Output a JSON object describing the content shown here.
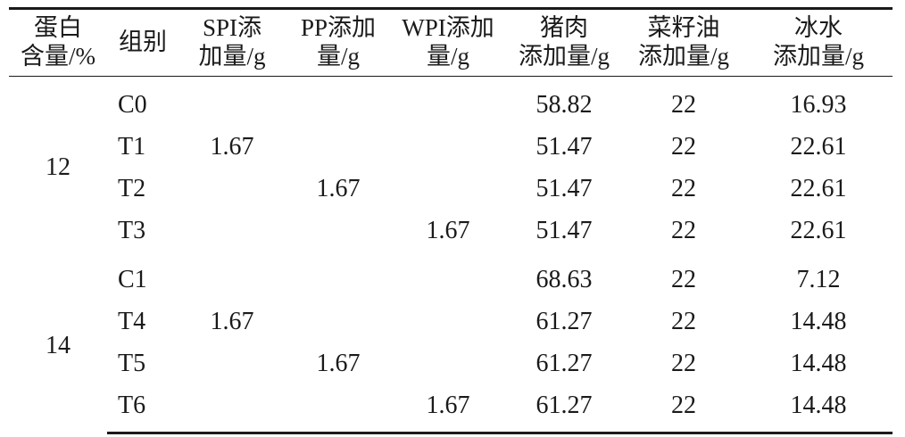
{
  "headers": [
    {
      "line1": "蛋白",
      "line2": "含量/%"
    },
    {
      "line1": "组别",
      "line2": ""
    },
    {
      "line1": "SPI添",
      "line2": "加量/g"
    },
    {
      "line1": "PP添加",
      "line2": "量/g"
    },
    {
      "line1": "WPI添加",
      "line2": "量/g"
    },
    {
      "line1": "猪肉",
      "line2": "添加量/g"
    },
    {
      "line1": "菜籽油",
      "line2": "添加量/g"
    },
    {
      "line1": "冰水",
      "line2": "添加量/g"
    }
  ],
  "groups": [
    {
      "protein": "12",
      "rows": [
        {
          "group": "C0",
          "spi": "",
          "pp": "",
          "wpi": "",
          "pork": "58.82",
          "oil": "22",
          "water": "16.93"
        },
        {
          "group": "T1",
          "spi": "1.67",
          "pp": "",
          "wpi": "",
          "pork": "51.47",
          "oil": "22",
          "water": "22.61"
        },
        {
          "group": "T2",
          "spi": "",
          "pp": "1.67",
          "wpi": "",
          "pork": "51.47",
          "oil": "22",
          "water": "22.61"
        },
        {
          "group": "T3",
          "spi": "",
          "pp": "",
          "wpi": "1.67",
          "pork": "51.47",
          "oil": "22",
          "water": "22.61"
        }
      ]
    },
    {
      "protein": "14",
      "rows": [
        {
          "group": "C1",
          "spi": "",
          "pp": "",
          "wpi": "",
          "pork": "68.63",
          "oil": "22",
          "water": "7.12"
        },
        {
          "group": "T4",
          "spi": "1.67",
          "pp": "",
          "wpi": "",
          "pork": "61.27",
          "oil": "22",
          "water": "14.48"
        },
        {
          "group": "T5",
          "spi": "",
          "pp": "1.67",
          "wpi": "",
          "pork": "61.27",
          "oil": "22",
          "water": "14.48"
        },
        {
          "group": "T6",
          "spi": "",
          "pp": "",
          "wpi": "1.67",
          "pork": "61.27",
          "oil": "22",
          "water": "14.48"
        }
      ]
    }
  ]
}
